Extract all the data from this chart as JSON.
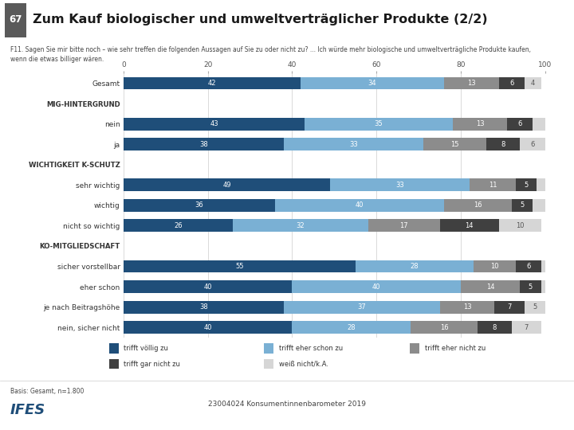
{
  "title": "Zum Kauf biologischer und umweltverträglicher Produkte (2/2)",
  "slide_number": "67",
  "question_text": "F11. Sagen Sie mir bitte noch – wie sehr treffen die folgenden Aussagen auf Sie zu oder nicht zu? ... Ich würde mehr biologische und umweltverträgliche Produkte kaufen,\nwenn die etwas billiger wären.",
  "categories": [
    "Gesamt",
    "MIG-HINTERGRUND",
    "nein",
    "ja",
    "WICHTIGKEIT K-SCHUTZ",
    "sehr wichtig",
    "wichtig",
    "nicht so wichtig",
    "KO-MITGLIEDSCHAFT",
    "sicher vorstellbar",
    "eher schon",
    "je nach Beitragshöhe",
    "nein, sicher nicht"
  ],
  "header_rows": [
    "MIG-HINTERGRUND",
    "WICHTIGKEIT K-SCHUTZ",
    "KO-MITGLIEDSCHAFT"
  ],
  "data": {
    "Gesamt": [
      42,
      34,
      13,
      6,
      4
    ],
    "nein": [
      43,
      35,
      13,
      6,
      3
    ],
    "ja": [
      38,
      33,
      15,
      8,
      6
    ],
    "sehr wichtig": [
      49,
      33,
      11,
      5,
      3
    ],
    "wichtig": [
      36,
      40,
      16,
      5,
      3
    ],
    "nicht so wichtig": [
      26,
      32,
      17,
      14,
      10
    ],
    "sicher vorstellbar": [
      55,
      28,
      10,
      6,
      1
    ],
    "eher schon": [
      40,
      40,
      14,
      5,
      1
    ],
    "je nach Beitragshöhe": [
      38,
      37,
      13,
      7,
      5
    ],
    "nein, sicher nicht": [
      40,
      28,
      16,
      8,
      7
    ]
  },
  "colors": [
    "#1f4e79",
    "#7ab0d4",
    "#8c8c8c",
    "#404040",
    "#d6d6d6"
  ],
  "legend_labels": [
    "trifft völlig zu",
    "trifft eher schon zu",
    "trifft eher nicht zu",
    "trifft gar nicht zu",
    "weiß nicht/k.A."
  ],
  "xlim": [
    0,
    100
  ],
  "xticks": [
    0,
    20,
    40,
    60,
    80,
    100
  ],
  "footer_left": "Basis: Gesamt, n=1.800",
  "footer_center": "23004024 Konsumentinnenbarometer 2019"
}
